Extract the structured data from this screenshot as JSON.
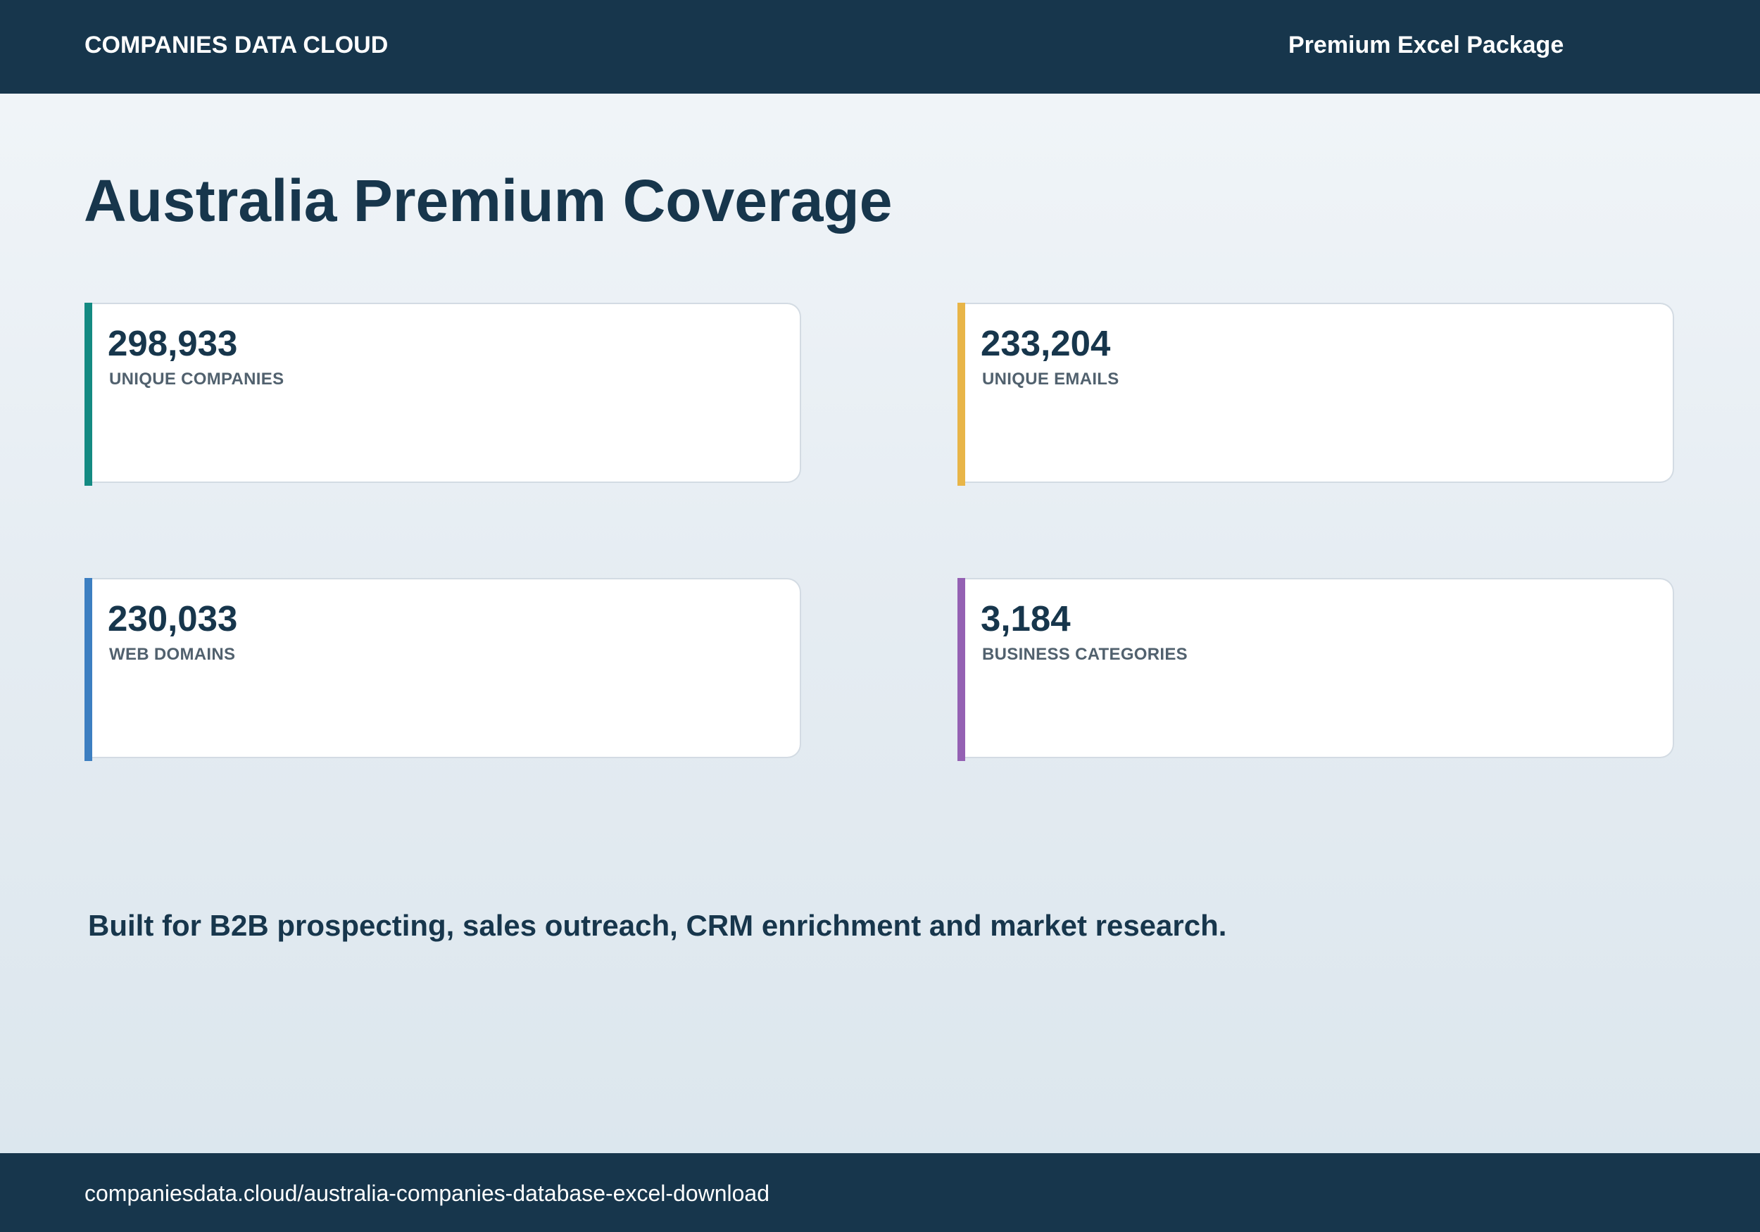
{
  "header": {
    "brand": "COMPANIES DATA CLOUD",
    "package": "Premium Excel Package"
  },
  "page": {
    "title": "Australia Premium Coverage"
  },
  "stats": [
    {
      "value": "298,933",
      "label": "UNIQUE COMPANIES",
      "accent_color": "#148a82"
    },
    {
      "value": "233,204",
      "label": "UNIQUE EMAILS",
      "accent_color": "#e8b548"
    },
    {
      "value": "230,033",
      "label": "WEB DOMAINS",
      "accent_color": "#3d7fc1"
    },
    {
      "value": "3,184",
      "label": "BUSINESS CATEGORIES",
      "accent_color": "#9461b3"
    }
  ],
  "tagline": "Built for B2B prospecting, sales outreach, CRM enrichment and market research.",
  "footer": {
    "url": "companiesdata.cloud/australia-companies-database-excel-download"
  },
  "colors": {
    "header_bg": "#17364c",
    "text_dark": "#17364c",
    "label_gray": "#51616e"
  }
}
